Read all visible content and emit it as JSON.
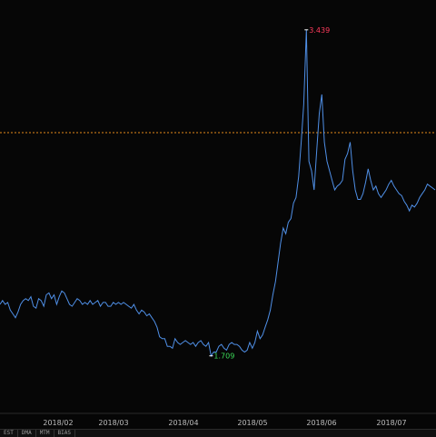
{
  "chart_data": {
    "type": "line",
    "x_ticks": [
      "2018/02",
      "2018/03",
      "2018/04",
      "2018/05",
      "2018/06",
      "2018/07"
    ],
    "ylim": [
      1.5,
      3.5
    ],
    "reference_line": 2.9,
    "max_point": {
      "value": 3.439,
      "label": "3.439"
    },
    "min_point": {
      "value": 1.709,
      "label": "1.709"
    },
    "series": [
      {
        "color": "#4f8fe6",
        "x": [
          0,
          1,
          2,
          3,
          4,
          5,
          6,
          7,
          8,
          9,
          10,
          11,
          12,
          13,
          14,
          15,
          16,
          17,
          18,
          19,
          20,
          21,
          22,
          23,
          24,
          25,
          26,
          27,
          28,
          29,
          30,
          31,
          32,
          33,
          34,
          35,
          36,
          37,
          38,
          39,
          40,
          41,
          42,
          43,
          44,
          45,
          46,
          47,
          48,
          49,
          50,
          51,
          52,
          53,
          54,
          55,
          56,
          57,
          58,
          59,
          60,
          61,
          62,
          63,
          64,
          65,
          66,
          67,
          68,
          69,
          70,
          71,
          72,
          73,
          74,
          75,
          76,
          77,
          78,
          79,
          80,
          81,
          82,
          83,
          84,
          85,
          86,
          87,
          88,
          89,
          90,
          91,
          92,
          93,
          94,
          95,
          96,
          97,
          98,
          99,
          100,
          101,
          102,
          103,
          104,
          105,
          106,
          107,
          108,
          109,
          110,
          111,
          112,
          113,
          114,
          115,
          116,
          117,
          118,
          119,
          120,
          121,
          122,
          123,
          124,
          125,
          126,
          127,
          128,
          129,
          130,
          131,
          132,
          133,
          134,
          135,
          136,
          137,
          138,
          139,
          140,
          141,
          142,
          143,
          144,
          145,
          146,
          147,
          148,
          149,
          150,
          151,
          152,
          153,
          154,
          155,
          156,
          157,
          158,
          159,
          160,
          161,
          162,
          163,
          164,
          165,
          166,
          167,
          168,
          169
        ],
        "y": [
          2.0,
          2.02,
          2.0,
          2.01,
          1.97,
          1.95,
          1.93,
          1.96,
          2.0,
          2.02,
          2.03,
          2.02,
          2.04,
          1.99,
          1.98,
          2.03,
          2.02,
          1.99,
          2.05,
          2.06,
          2.03,
          2.05,
          2.0,
          2.04,
          2.07,
          2.06,
          2.03,
          2.0,
          1.99,
          2.01,
          2.03,
          2.02,
          2.0,
          2.01,
          2.0,
          2.02,
          2.0,
          2.01,
          2.02,
          1.99,
          2.01,
          2.01,
          1.99,
          1.99,
          2.01,
          2.0,
          2.01,
          2.0,
          2.01,
          2.0,
          1.99,
          1.98,
          2.0,
          1.97,
          1.95,
          1.97,
          1.96,
          1.94,
          1.95,
          1.93,
          1.91,
          1.88,
          1.83,
          1.82,
          1.82,
          1.78,
          1.78,
          1.77,
          1.82,
          1.8,
          1.79,
          1.8,
          1.81,
          1.8,
          1.79,
          1.8,
          1.78,
          1.8,
          1.81,
          1.79,
          1.78,
          1.8,
          1.73,
          1.75,
          1.75,
          1.78,
          1.79,
          1.77,
          1.76,
          1.79,
          1.8,
          1.79,
          1.79,
          1.78,
          1.76,
          1.75,
          1.76,
          1.8,
          1.77,
          1.8,
          1.86,
          1.82,
          1.84,
          1.88,
          1.92,
          1.97,
          2.05,
          2.12,
          2.22,
          2.32,
          2.4,
          2.37,
          2.43,
          2.45,
          2.53,
          2.56,
          2.67,
          2.85,
          3.05,
          3.439,
          2.75,
          2.7,
          2.6,
          2.8,
          3.0,
          3.1,
          2.85,
          2.75,
          2.7,
          2.65,
          2.6,
          2.62,
          2.63,
          2.65,
          2.76,
          2.79,
          2.85,
          2.7,
          2.6,
          2.55,
          2.55,
          2.58,
          2.64,
          2.71,
          2.65,
          2.6,
          2.62,
          2.58,
          2.56,
          2.58,
          2.6,
          2.63,
          2.65,
          2.62,
          2.6,
          2.58,
          2.57,
          2.54,
          2.52,
          2.49,
          2.52,
          2.51,
          2.53,
          2.56,
          2.58,
          2.6,
          2.63,
          2.62,
          2.61,
          2.6
        ]
      }
    ]
  },
  "tabs": [
    "EST",
    "DMA",
    "MTM",
    "BIAS"
  ]
}
